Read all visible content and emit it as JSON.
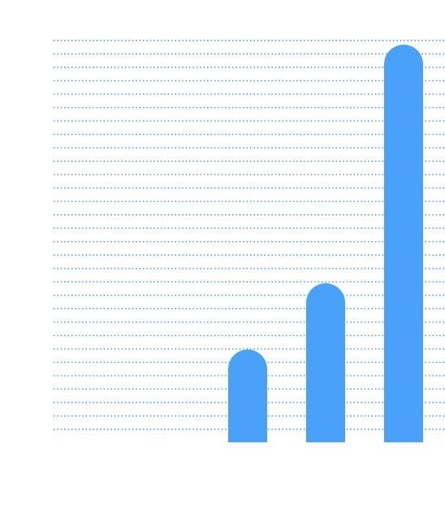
{
  "chart_data": {
    "type": "bar",
    "categories": [
      "",
      "",
      ""
    ],
    "values": [
      7,
      12,
      30
    ],
    "ylim": [
      0,
      30
    ],
    "grid": true,
    "grid_style": "dotted horizontal lines",
    "bar_shape": "rounded top",
    "title": "",
    "xlabel": "",
    "ylabel": "",
    "colors": {
      "bar": "#4aa1fa",
      "grid": "#2d8fe0",
      "background": "#ffffff"
    }
  }
}
